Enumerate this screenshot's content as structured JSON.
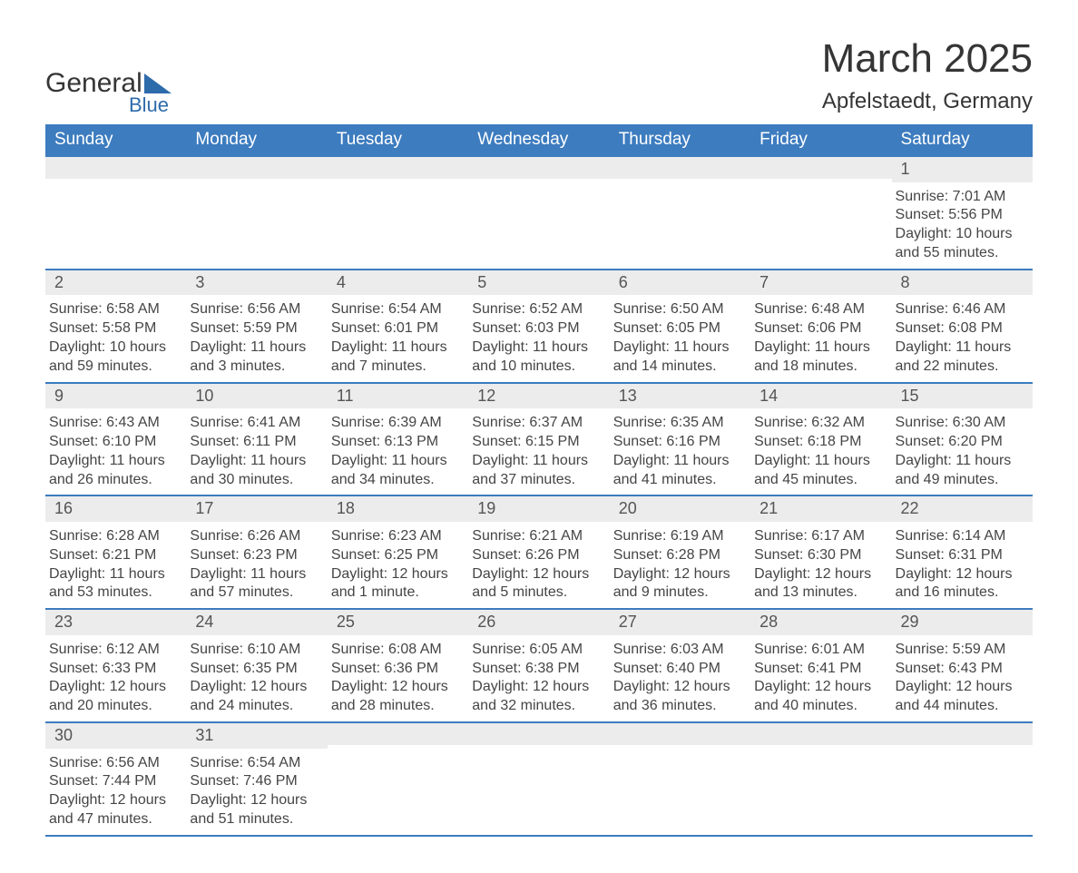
{
  "brand": {
    "word1": "General",
    "word2": "Blue"
  },
  "title": "March 2025",
  "subtitle": "Apfelstaedt, Germany",
  "theme": {
    "header_bg": "#3d7cbf",
    "header_text": "#ffffff",
    "row_divider": "#3d7cbf",
    "daynum_bg": "#ececec",
    "body_text": "#454545",
    "page_bg": "#ffffff",
    "brand_blue": "#2e6bab"
  },
  "calendar": {
    "type": "table",
    "day_labels": [
      "Sunday",
      "Monday",
      "Tuesday",
      "Wednesday",
      "Thursday",
      "Friday",
      "Saturday"
    ],
    "label_fontsize": 19,
    "daynum_fontsize": 18,
    "body_fontsize": 16,
    "weeks": [
      [
        null,
        null,
        null,
        null,
        null,
        null,
        {
          "n": "1",
          "sunrise": "7:01 AM",
          "sunset": "5:56 PM",
          "daylight": "10 hours and 55 minutes."
        }
      ],
      [
        {
          "n": "2",
          "sunrise": "6:58 AM",
          "sunset": "5:58 PM",
          "daylight": "10 hours and 59 minutes."
        },
        {
          "n": "3",
          "sunrise": "6:56 AM",
          "sunset": "5:59 PM",
          "daylight": "11 hours and 3 minutes."
        },
        {
          "n": "4",
          "sunrise": "6:54 AM",
          "sunset": "6:01 PM",
          "daylight": "11 hours and 7 minutes."
        },
        {
          "n": "5",
          "sunrise": "6:52 AM",
          "sunset": "6:03 PM",
          "daylight": "11 hours and 10 minutes."
        },
        {
          "n": "6",
          "sunrise": "6:50 AM",
          "sunset": "6:05 PM",
          "daylight": "11 hours and 14 minutes."
        },
        {
          "n": "7",
          "sunrise": "6:48 AM",
          "sunset": "6:06 PM",
          "daylight": "11 hours and 18 minutes."
        },
        {
          "n": "8",
          "sunrise": "6:46 AM",
          "sunset": "6:08 PM",
          "daylight": "11 hours and 22 minutes."
        }
      ],
      [
        {
          "n": "9",
          "sunrise": "6:43 AM",
          "sunset": "6:10 PM",
          "daylight": "11 hours and 26 minutes."
        },
        {
          "n": "10",
          "sunrise": "6:41 AM",
          "sunset": "6:11 PM",
          "daylight": "11 hours and 30 minutes."
        },
        {
          "n": "11",
          "sunrise": "6:39 AM",
          "sunset": "6:13 PM",
          "daylight": "11 hours and 34 minutes."
        },
        {
          "n": "12",
          "sunrise": "6:37 AM",
          "sunset": "6:15 PM",
          "daylight": "11 hours and 37 minutes."
        },
        {
          "n": "13",
          "sunrise": "6:35 AM",
          "sunset": "6:16 PM",
          "daylight": "11 hours and 41 minutes."
        },
        {
          "n": "14",
          "sunrise": "6:32 AM",
          "sunset": "6:18 PM",
          "daylight": "11 hours and 45 minutes."
        },
        {
          "n": "15",
          "sunrise": "6:30 AM",
          "sunset": "6:20 PM",
          "daylight": "11 hours and 49 minutes."
        }
      ],
      [
        {
          "n": "16",
          "sunrise": "6:28 AM",
          "sunset": "6:21 PM",
          "daylight": "11 hours and 53 minutes."
        },
        {
          "n": "17",
          "sunrise": "6:26 AM",
          "sunset": "6:23 PM",
          "daylight": "11 hours and 57 minutes."
        },
        {
          "n": "18",
          "sunrise": "6:23 AM",
          "sunset": "6:25 PM",
          "daylight": "12 hours and 1 minute."
        },
        {
          "n": "19",
          "sunrise": "6:21 AM",
          "sunset": "6:26 PM",
          "daylight": "12 hours and 5 minutes."
        },
        {
          "n": "20",
          "sunrise": "6:19 AM",
          "sunset": "6:28 PM",
          "daylight": "12 hours and 9 minutes."
        },
        {
          "n": "21",
          "sunrise": "6:17 AM",
          "sunset": "6:30 PM",
          "daylight": "12 hours and 13 minutes."
        },
        {
          "n": "22",
          "sunrise": "6:14 AM",
          "sunset": "6:31 PM",
          "daylight": "12 hours and 16 minutes."
        }
      ],
      [
        {
          "n": "23",
          "sunrise": "6:12 AM",
          "sunset": "6:33 PM",
          "daylight": "12 hours and 20 minutes."
        },
        {
          "n": "24",
          "sunrise": "6:10 AM",
          "sunset": "6:35 PM",
          "daylight": "12 hours and 24 minutes."
        },
        {
          "n": "25",
          "sunrise": "6:08 AM",
          "sunset": "6:36 PM",
          "daylight": "12 hours and 28 minutes."
        },
        {
          "n": "26",
          "sunrise": "6:05 AM",
          "sunset": "6:38 PM",
          "daylight": "12 hours and 32 minutes."
        },
        {
          "n": "27",
          "sunrise": "6:03 AM",
          "sunset": "6:40 PM",
          "daylight": "12 hours and 36 minutes."
        },
        {
          "n": "28",
          "sunrise": "6:01 AM",
          "sunset": "6:41 PM",
          "daylight": "12 hours and 40 minutes."
        },
        {
          "n": "29",
          "sunrise": "5:59 AM",
          "sunset": "6:43 PM",
          "daylight": "12 hours and 44 minutes."
        }
      ],
      [
        {
          "n": "30",
          "sunrise": "6:56 AM",
          "sunset": "7:44 PM",
          "daylight": "12 hours and 47 minutes."
        },
        {
          "n": "31",
          "sunrise": "6:54 AM",
          "sunset": "7:46 PM",
          "daylight": "12 hours and 51 minutes."
        },
        null,
        null,
        null,
        null,
        null
      ]
    ],
    "labels": {
      "sunrise": "Sunrise:",
      "sunset": "Sunset:",
      "daylight": "Daylight:"
    }
  }
}
